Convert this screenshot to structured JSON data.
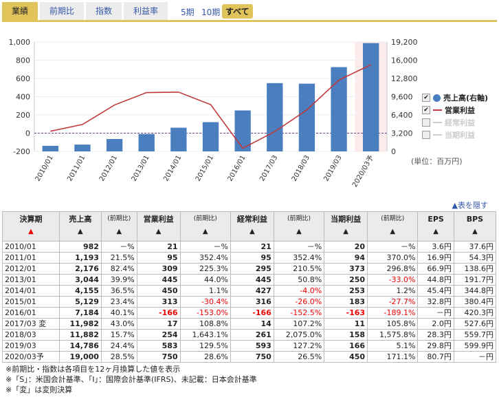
{
  "tabs": [
    "業績",
    "前期比",
    "指数",
    "利益率"
  ],
  "periods": [
    "5期",
    "10期",
    "すべて"
  ],
  "chart": {
    "left_ticks": [
      "1,000",
      "800",
      "600",
      "400",
      "200",
      "0",
      "-200"
    ],
    "right_ticks": [
      "19,200",
      "16,000",
      "12,800",
      "9,600",
      "6,400",
      "3,200",
      "0"
    ],
    "categories": [
      "2010/01",
      "2011/01",
      "2012/01",
      "2013/01",
      "2014/01",
      "2015/01",
      "2016/01",
      "2017/03",
      "2018/03",
      "2019/03",
      "2020/03予"
    ],
    "sales": [
      982,
      1193,
      2176,
      3044,
      4155,
      5129,
      7184,
      11982,
      11882,
      14786,
      19000
    ],
    "operating_income": [
      21,
      95,
      309,
      445,
      450,
      313,
      -166,
      17,
      254,
      583,
      750
    ],
    "colors": {
      "bar": "#4a7ebf",
      "line": "#c0393b"
    }
  },
  "legend": [
    "売上高(右軸)",
    "営業利益",
    "経常利益",
    "当期利益"
  ],
  "unit": "(単位：百万円)",
  "hide_label": "▲表を隠す",
  "headers": [
    "決算期",
    "売上高",
    "(前期比)",
    "営業利益",
    "(前期比)",
    "経常利益",
    "(前期比)",
    "当期利益",
    "(前期比)",
    "EPS",
    "BPS"
  ],
  "rows": [
    [
      "2010/01",
      "982",
      "－%",
      "21",
      "－%",
      "21",
      "－%",
      "20",
      "－%",
      "3.6円",
      "37.6円"
    ],
    [
      "2011/01",
      "1,193",
      "21.5%",
      "95",
      "352.4%",
      "95",
      "352.4%",
      "94",
      "370.0%",
      "16.9円",
      "54.3円"
    ],
    [
      "2012/01",
      "2,176",
      "82.4%",
      "309",
      "225.3%",
      "295",
      "210.5%",
      "373",
      "296.8%",
      "66.9円",
      "138.6円"
    ],
    [
      "2013/01",
      "3,044",
      "39.9%",
      "445",
      "44.0%",
      "445",
      "50.8%",
      "250",
      "-33.0%",
      "44.8円",
      "191.7円"
    ],
    [
      "2014/01",
      "4,155",
      "36.5%",
      "450",
      "1.1%",
      "427",
      "-4.0%",
      "253",
      "1.2%",
      "45.4円",
      "344.8円"
    ],
    [
      "2015/01",
      "5,129",
      "23.4%",
      "313",
      "-30.4%",
      "316",
      "-26.0%",
      "183",
      "-27.7%",
      "32.8円",
      "380.4円"
    ],
    [
      "2016/01",
      "7,184",
      "40.1%",
      "-166",
      "-153.0%",
      "-166",
      "-152.5%",
      "-163",
      "-189.1%",
      "－円",
      "420.3円"
    ],
    [
      "2017/03 変",
      "11,982",
      "43.0%",
      "17",
      "108.8%",
      "14",
      "107.2%",
      "11",
      "105.8%",
      "2.0円",
      "527.6円"
    ],
    [
      "2018/03",
      "11,882",
      "15.7%",
      "254",
      "1,643.1%",
      "261",
      "2,075.0%",
      "158",
      "1,575.8%",
      "28.3円",
      "559.7円"
    ],
    [
      "2019/03",
      "14,786",
      "24.4%",
      "583",
      "129.5%",
      "593",
      "127.2%",
      "166",
      "5.1%",
      "29.8円",
      "599.9円"
    ],
    [
      "2020/03予",
      "19,000",
      "28.5%",
      "750",
      "28.6%",
      "750",
      "26.5%",
      "450",
      "171.1%",
      "80.7円",
      "－円"
    ]
  ],
  "notes": [
    "※前期比・指数は各項目を12ヶ月換算した値を表示",
    "※「S」：米国会計基準、「I」：国際会計基準(IFRS)、未記載：日本会計基準",
    "※「変」は変則決算"
  ]
}
